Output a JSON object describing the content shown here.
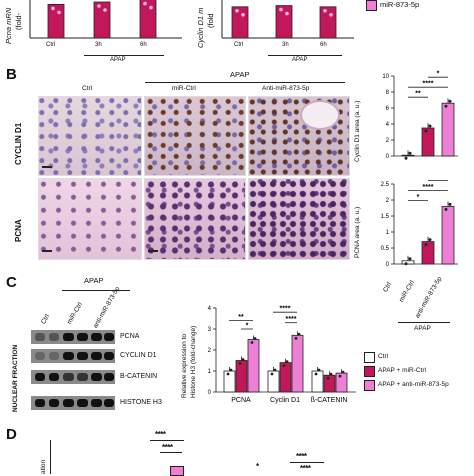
{
  "panelA": {
    "left_axis_label": "Pcna mRN",
    "left_axis_label2": "(fold-",
    "right_axis_label": "Cyclin D1 m",
    "right_axis_label2": "(fold",
    "legend_fragment": "miR-873-5p",
    "xticks": [
      "Ctrl",
      "3h",
      "6h"
    ],
    "group_label": "APAP"
  },
  "panelB": {
    "letter": "B",
    "header_apap": "APAP",
    "col_labels": [
      "Ctrl",
      "miR-Ctrl",
      "Anti-miR-873-5p"
    ],
    "row_labels": [
      "CYCLIN D1",
      "PCNA"
    ],
    "x_labels": [
      "Ctrl",
      "miR-Ctrl",
      "anti-miR-873-5p"
    ],
    "group_label": "APAP"
  },
  "panelC": {
    "letter": "C",
    "header_apap": "APAP",
    "lane_labels": [
      "Ctrl",
      "miR-Ctrl",
      "anti-miR-873-5p"
    ],
    "blot_labels": [
      "PCNA",
      "CYCLIN D1",
      "B-CATENIN",
      "HISTONE H3"
    ],
    "side_label": "NUCLEAR FRACTION",
    "legend": [
      "Ctrl",
      "APAP + miR-Ctrl",
      "APAP + anti-miR-873-5p"
    ]
  },
  "panelD": {
    "letter": "D",
    "axis_fragment": "ation"
  },
  "colors": {
    "ctrl": "#ffffff",
    "mirctrl": "#c2185b",
    "antimir": "#ee7fd6",
    "sig": "#111111"
  },
  "chart_data": [
    {
      "type": "bar",
      "ylabel": "Pcna mRN (fold-",
      "categories": [
        "Ctrl",
        "3h",
        "6h"
      ],
      "series": [
        {
          "values": [
            2.8,
            3.0,
            3.2
          ]
        }
      ]
    },
    {
      "type": "bar",
      "ylabel": "Cyclin D1 m (fold",
      "categories": [
        "Ctrl",
        "3h",
        "6h"
      ],
      "series": [
        {
          "values": [
            2.6,
            2.7,
            2.6
          ]
        }
      ]
    },
    {
      "type": "bar",
      "ylabel": "Cyclin D1 area (a. u.)",
      "categories": [
        "Ctrl",
        "miR-Ctrl",
        "anti-miR-873-5p"
      ],
      "values": [
        0.1,
        3.5,
        6.6
      ],
      "ylim": [
        0,
        10
      ],
      "yticks": [
        0,
        2,
        4,
        6,
        8,
        10
      ],
      "significance": [
        "**",
        "****",
        "*"
      ]
    },
    {
      "type": "bar",
      "ylabel": "PCNA area (a. u.)",
      "categories": [
        "Ctrl",
        "miR-Ctrl",
        "anti-miR-873-5p"
      ],
      "values": [
        0.1,
        0.7,
        1.8
      ],
      "ylim": [
        0,
        2.5
      ],
      "yticks": [
        0.0,
        0.5,
        1.0,
        1.5,
        2.0,
        2.5
      ],
      "significance": [
        "*",
        "****",
        "****"
      ]
    },
    {
      "type": "bar",
      "ylabel": "Relative expression to Histone H3 (fold-change)",
      "categories": [
        "PCNA",
        "Cyclin D1",
        "ß-CATENIN"
      ],
      "series": [
        {
          "name": "Ctrl",
          "values": [
            1.0,
            1.0,
            1.0
          ]
        },
        {
          "name": "APAP + miR-Ctrl",
          "values": [
            1.5,
            1.4,
            0.8
          ]
        },
        {
          "name": "APAP + anti-miR-873-5p",
          "values": [
            2.5,
            2.7,
            0.9
          ]
        }
      ],
      "ylim": [
        0,
        4
      ],
      "yticks": [
        0,
        1,
        2,
        3,
        4
      ],
      "significance": [
        "**",
        "*",
        "****",
        "****"
      ]
    }
  ]
}
